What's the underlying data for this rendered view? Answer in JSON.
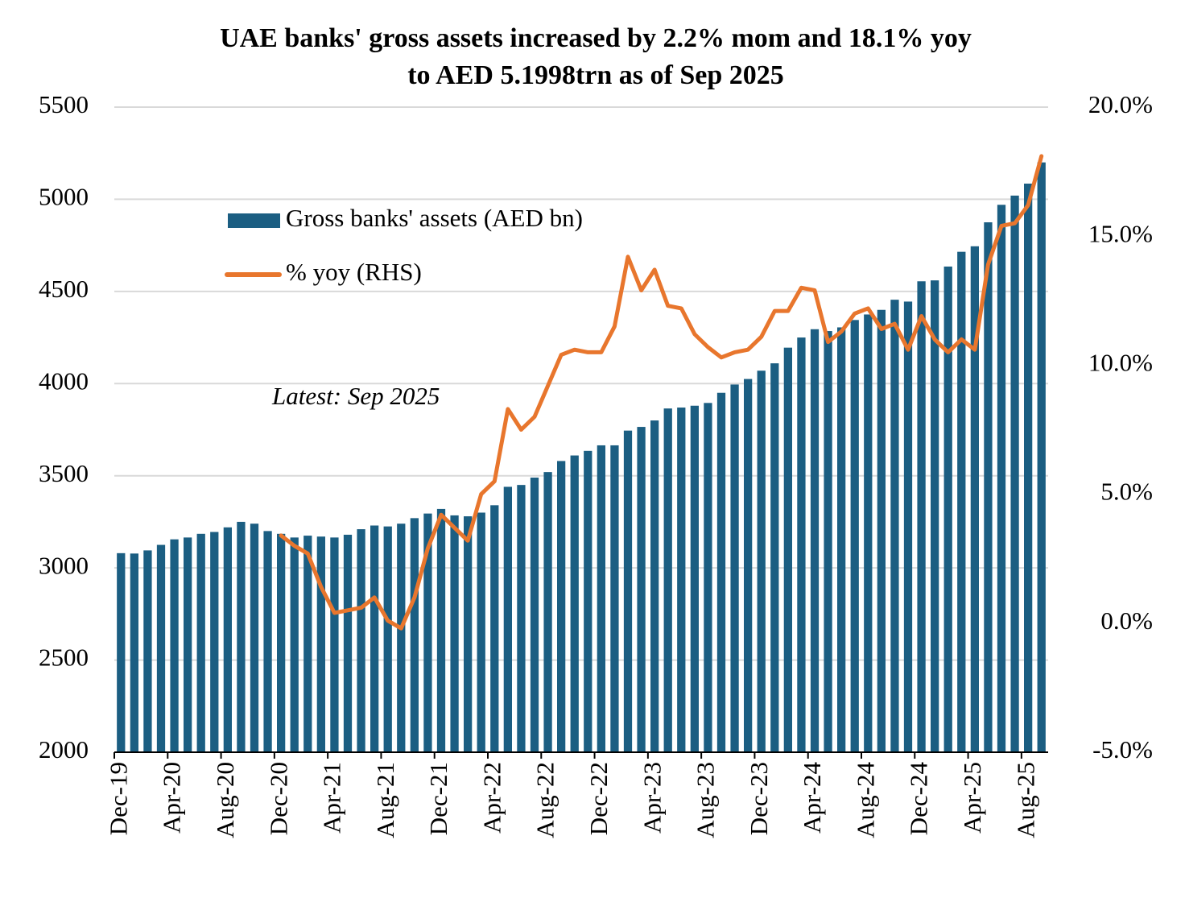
{
  "chart_data": {
    "type": "bar-line",
    "title": [
      "UAE banks' gross assets increased by 2.2% mom and 18.1% yoy",
      "to AED 5.1998trn as of Sep 2025"
    ],
    "annotation": "Latest: Sep 2025",
    "categories": [
      "Dec-19",
      null,
      null,
      null,
      "Apr-20",
      null,
      null,
      null,
      "Aug-20",
      null,
      null,
      null,
      "Dec-20",
      null,
      null,
      null,
      "Apr-21",
      null,
      null,
      null,
      "Aug-21",
      null,
      null,
      null,
      "Dec-21",
      null,
      null,
      null,
      "Apr-22",
      null,
      null,
      null,
      "Aug-22",
      null,
      null,
      null,
      "Dec-22",
      null,
      null,
      null,
      "Apr-23",
      null,
      null,
      null,
      "Aug-23",
      null,
      null,
      null,
      "Dec-23",
      null,
      null,
      null,
      "Apr-24",
      null,
      null,
      null,
      "Aug-24",
      null,
      null,
      null,
      "Dec-24",
      null,
      null,
      null,
      "Apr-25",
      null,
      null,
      null,
      "Aug-25",
      null
    ],
    "series": [
      {
        "name": "Gross banks' assets (AED bn)",
        "type": "bar",
        "color": "#1b5e82",
        "values": [
          3080,
          3078,
          3095,
          3125,
          3155,
          3165,
          3185,
          3195,
          3220,
          3250,
          3240,
          3200,
          3185,
          3165,
          3175,
          3170,
          3165,
          3180,
          3210,
          3230,
          3225,
          3240,
          3270,
          3295,
          3320,
          3285,
          3280,
          3300,
          3340,
          3440,
          3450,
          3490,
          3520,
          3580,
          3610,
          3635,
          3665,
          3665,
          3745,
          3765,
          3800,
          3865,
          3870,
          3880,
          3895,
          3950,
          3995,
          4025,
          4070,
          4110,
          4195,
          4250,
          4295,
          4285,
          4305,
          4345,
          4375,
          4400,
          4455,
          4445,
          4555,
          4560,
          4635,
          4715,
          4745,
          4875,
          4970,
          5020,
          5085,
          5200
        ]
      },
      {
        "name": "% yoy (RHS)",
        "type": "line",
        "axis": "y2",
        "color": "#e8762d",
        "values": [
          null,
          null,
          null,
          null,
          null,
          null,
          null,
          null,
          null,
          null,
          null,
          null,
          3.4,
          3.0,
          2.7,
          1.4,
          0.4,
          0.5,
          0.6,
          1.0,
          0.1,
          -0.2,
          1.0,
          2.9,
          4.2,
          3.7,
          3.2,
          5.0,
          5.5,
          8.3,
          7.5,
          8.0,
          9.2,
          10.4,
          10.6,
          10.5,
          10.5,
          11.5,
          14.2,
          12.9,
          13.7,
          12.3,
          12.2,
          11.2,
          10.7,
          10.3,
          10.5,
          10.6,
          11.1,
          12.1,
          12.1,
          13.0,
          12.9,
          10.9,
          11.3,
          12.0,
          12.2,
          11.4,
          11.6,
          10.6,
          11.9,
          11.0,
          10.5,
          11.0,
          10.6,
          13.9,
          15.4,
          15.5,
          16.2,
          18.1
        ]
      }
    ],
    "ylim": [
      2000,
      5500
    ],
    "yticks": [
      2000,
      2500,
      3000,
      3500,
      4000,
      4500,
      5000,
      5500
    ],
    "y2lim": [
      -5,
      20
    ],
    "y2ticks": [
      {
        "value": -5,
        "label": "-5.0%"
      },
      {
        "value": 0,
        "label": "0.0%"
      },
      {
        "value": 5,
        "label": "5.0%"
      },
      {
        "value": 10,
        "label": "10.0%"
      },
      {
        "value": 15,
        "label": "15.0%"
      },
      {
        "value": 20,
        "label": "20.0%"
      }
    ],
    "grid": true
  }
}
